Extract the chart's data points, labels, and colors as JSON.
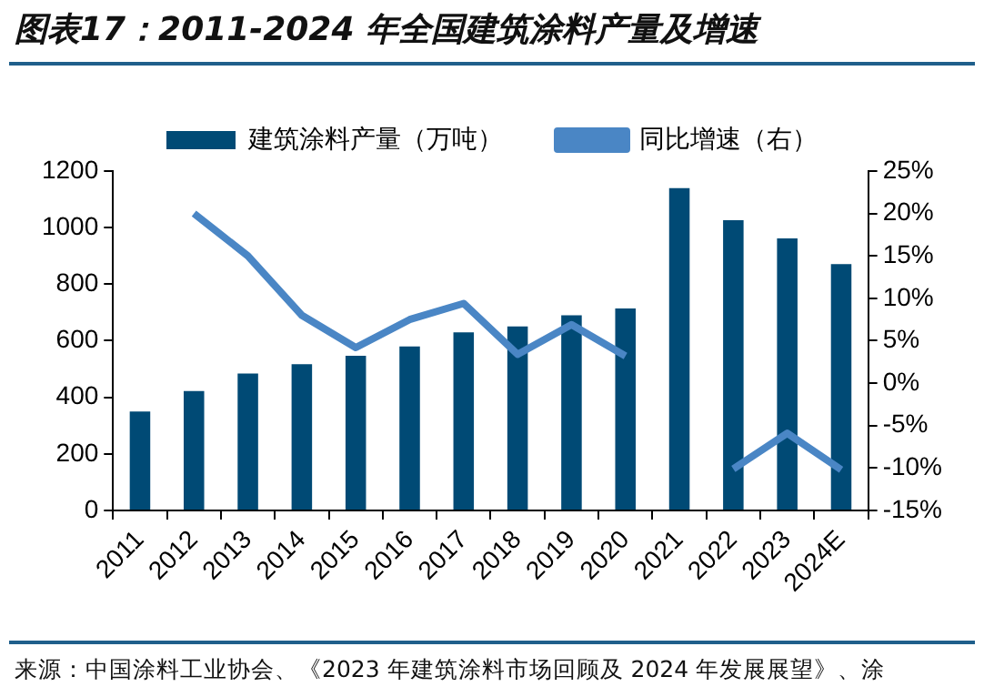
{
  "chart_data": {
    "type": "bar",
    "title": "图表17：2011-2024 年全国建筑涂料产量及增速",
    "categories": [
      "2011",
      "2012",
      "2013",
      "2014",
      "2015",
      "2016",
      "2017",
      "2018",
      "2019",
      "2020",
      "2021",
      "2022",
      "2023",
      "2024E"
    ],
    "series": [
      {
        "name": "建筑涂料产量（万吨）",
        "color": "#004a75",
        "values": [
          350,
          422,
          484,
          517,
          547,
          580,
          630,
          651,
          690,
          714,
          1140,
          1026,
          962,
          871
        ]
      },
      {
        "name": "同比增速（右）",
        "type": "line",
        "axis": "y2",
        "color": "#4a86c5",
        "values": [
          null,
          20,
          15,
          8,
          4.2,
          7.5,
          9.4,
          3.4,
          6.9,
          3.2,
          null,
          -10.1,
          -5.9,
          -10.2
        ]
      }
    ],
    "ylim": [
      0,
      1200
    ],
    "yticks": [
      0,
      200,
      400,
      600,
      800,
      1000,
      1200
    ],
    "y2lim": [
      -15,
      25
    ],
    "y2ticks": [
      {
        "value": -15,
        "label": "-15%"
      },
      {
        "value": -10,
        "label": "-10%"
      },
      {
        "value": -5,
        "label": "-5%"
      },
      {
        "value": 0,
        "label": "0%"
      },
      {
        "value": 5,
        "label": "5%"
      },
      {
        "value": 10,
        "label": "10%"
      },
      {
        "value": 15,
        "label": "15%"
      },
      {
        "value": 20,
        "label": "20%"
      },
      {
        "value": 25,
        "label": "25%"
      }
    ],
    "grid": false,
    "legend": "top",
    "marker": "none",
    "line_style": "solid",
    "annotations": [
      "来源：中国涂料工业协会、《2023 年建筑涂料市场回顾及 2024 年发展展望》、涂"
    ]
  }
}
